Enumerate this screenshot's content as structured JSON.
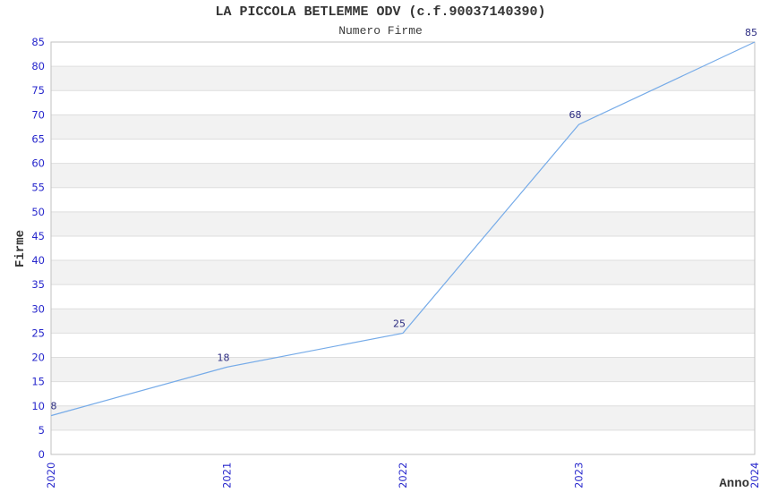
{
  "chart_data": {
    "type": "line",
    "title": "LA PICCOLA BETLEMME ODV (c.f.90037140390)",
    "subtitle": "Numero Firme",
    "xlabel": "Anno",
    "ylabel": "Firme",
    "x": [
      "2020",
      "2021",
      "2022",
      "2023",
      "2024"
    ],
    "series": [
      {
        "name": "Numero Firme",
        "values": [
          8,
          18,
          25,
          68,
          85
        ]
      }
    ],
    "data_labels": [
      "8",
      "18",
      "25",
      "68",
      "85"
    ],
    "ylim": [
      0,
      85
    ],
    "ytick_step": 5,
    "ytick_labels": [
      "0",
      "5",
      "10",
      "15",
      "20",
      "25",
      "30",
      "35",
      "40",
      "45",
      "50",
      "55",
      "60",
      "65",
      "70",
      "75",
      "80",
      "85"
    ],
    "grid": "horizontal",
    "banded_background": true,
    "legend": "none",
    "colors": {
      "line": "#76abe8",
      "tick_label": "#2727cc",
      "data_label": "#2b2b80",
      "title_text": "#333333",
      "axis_title_text": "#333333",
      "band_fill": "#f2f2f2",
      "gridline": "#dedede",
      "plot_border": "#c2c2c2",
      "background": "#ffffff"
    }
  }
}
